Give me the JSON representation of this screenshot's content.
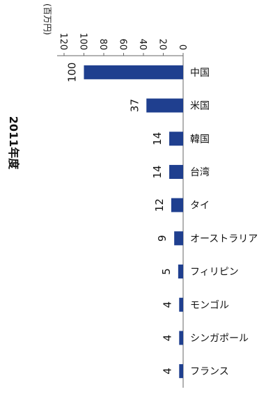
{
  "chart_data": {
    "type": "bar",
    "orientation": "vertical",
    "title": "2011年度",
    "unit": "(百万円)",
    "categories": [
      "中国",
      "米国",
      "韓国",
      "台湾",
      "タイ",
      "オーストラリア",
      "フィリピン",
      "モンゴル",
      "シンガポール",
      "フランス"
    ],
    "values": [
      100,
      37,
      14,
      14,
      12,
      9,
      5,
      4,
      4,
      4
    ],
    "value_labels": [
      "100",
      "37",
      "14",
      "14",
      "12",
      "9",
      "5",
      "4",
      "4",
      "4"
    ],
    "y_ticks": [
      "0",
      "20",
      "40",
      "60",
      "80",
      "100",
      "120"
    ],
    "ylim": [
      0,
      120
    ],
    "bar_color": "#1f3f8f",
    "grid": false,
    "legend": "none"
  }
}
